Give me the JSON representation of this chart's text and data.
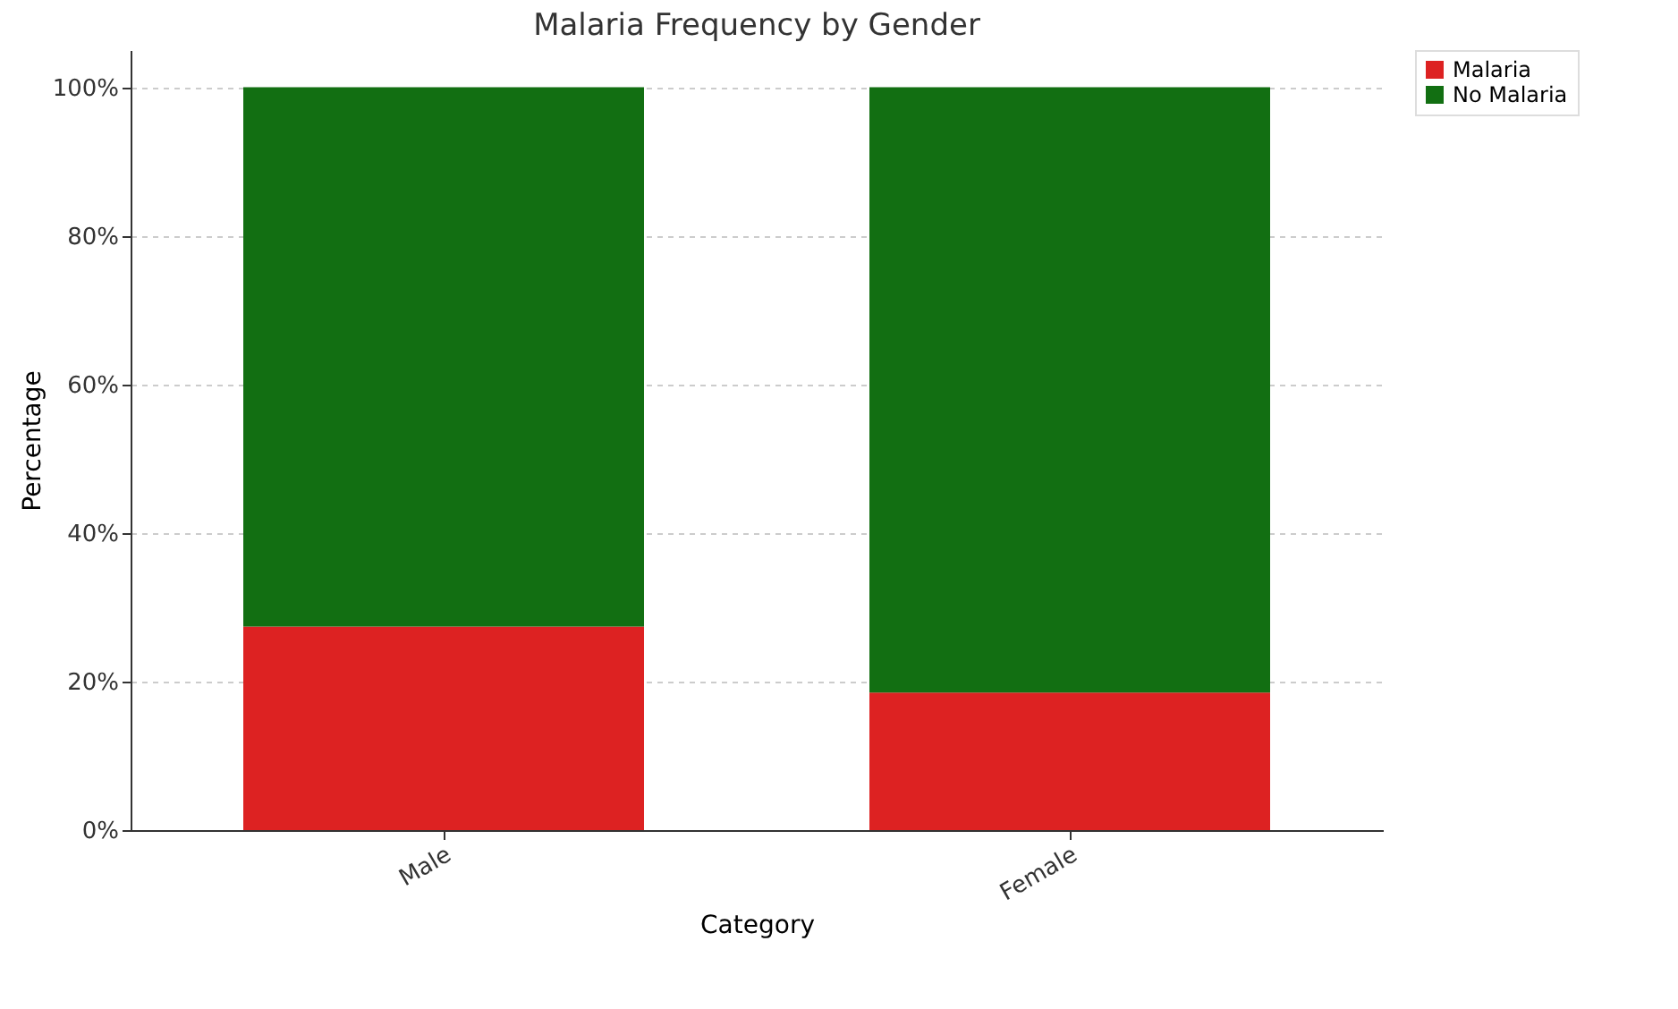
{
  "chart_data": {
    "type": "bar",
    "title": "Malaria Frequency by Gender",
    "xlabel": "Category",
    "ylabel": "Percentage",
    "categories": [
      "Male",
      "Female"
    ],
    "stacked": true,
    "series": [
      {
        "name": "Malaria",
        "color": "#dd2222",
        "values": [
          27.4,
          18.5
        ]
      },
      {
        "name": "No Malaria",
        "color": "#126f12",
        "values": [
          72.6,
          81.5
        ]
      }
    ],
    "ylim": [
      0,
      105
    ],
    "yticks": [
      {
        "value": 0,
        "label": "0%"
      },
      {
        "value": 20,
        "label": "20%"
      },
      {
        "value": 40,
        "label": "40%"
      },
      {
        "value": 60,
        "label": "60%"
      },
      {
        "value": 80,
        "label": "80%"
      },
      {
        "value": 100,
        "label": "100%"
      }
    ],
    "grid": "y",
    "legend": "top right"
  }
}
